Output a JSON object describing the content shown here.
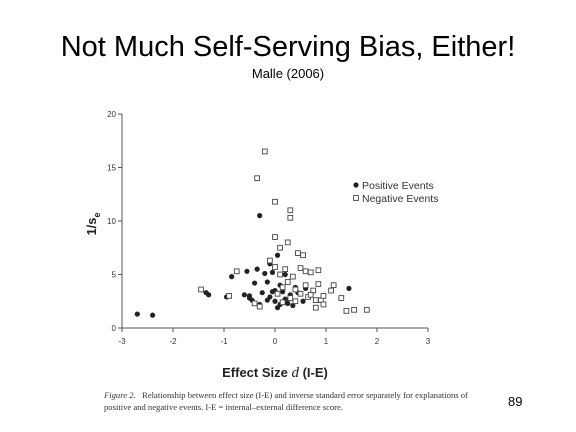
{
  "slide": {
    "title": "Not Much Self-Serving Bias, Either!",
    "subtitle": "Malle (2006)",
    "page_number": "89"
  },
  "figure": {
    "label": "Figure 2.",
    "caption": "Relationship between effect size (I-E) and inverse standard error separately for explanations of positive and negative events. I-E = internal–external difference score."
  },
  "chart_data": {
    "type": "scatter",
    "xlabel_main": "Effect Size ",
    "xlabel_italic": "d",
    "xlabel_suffix": " (I-E)",
    "ylabel_main": "1/s",
    "ylabel_sub": "e",
    "xlim": [
      -3,
      3
    ],
    "ylim": [
      0,
      20
    ],
    "xticks": [
      -3,
      -2,
      -1,
      0,
      1,
      2,
      3
    ],
    "yticks": [
      0,
      5,
      10,
      15,
      20
    ],
    "grid": false,
    "legend_position": "right",
    "colors": {
      "positive": "#222222",
      "negative": "#444444"
    },
    "series": [
      {
        "name": "Positive Events",
        "marker": "filled-circle",
        "points": [
          [
            -2.7,
            1.3
          ],
          [
            -2.4,
            1.2
          ],
          [
            -1.35,
            3.3
          ],
          [
            -1.3,
            3.1
          ],
          [
            -0.85,
            4.8
          ],
          [
            -0.55,
            5.3
          ],
          [
            -0.5,
            3.0
          ],
          [
            -0.5,
            2.8
          ],
          [
            -0.4,
            4.2
          ],
          [
            -0.35,
            5.5
          ],
          [
            -0.3,
            10.5
          ],
          [
            -0.3,
            2.2
          ],
          [
            -0.25,
            3.3
          ],
          [
            -0.2,
            5.1
          ],
          [
            -0.15,
            4.3
          ],
          [
            -0.15,
            2.6
          ],
          [
            -0.1,
            2.9
          ],
          [
            -0.1,
            6.0
          ],
          [
            -0.05,
            5.2
          ],
          [
            0.0,
            3.5
          ],
          [
            0.0,
            2.5
          ],
          [
            0.05,
            6.8
          ],
          [
            0.1,
            2.2
          ],
          [
            0.15,
            3.4
          ],
          [
            0.2,
            5.0
          ],
          [
            0.25,
            2.3
          ],
          [
            0.3,
            3.1
          ],
          [
            0.4,
            3.8
          ],
          [
            0.45,
            3.3
          ],
          [
            0.55,
            2.5
          ],
          [
            0.6,
            3.7
          ],
          [
            -0.45,
            2.6
          ],
          [
            -0.95,
            2.9
          ],
          [
            1.45,
            3.7
          ],
          [
            0.1,
            4.0
          ],
          [
            0.2,
            2.7
          ],
          [
            -0.05,
            3.4
          ],
          [
            0.35,
            2.1
          ],
          [
            -0.6,
            3.1
          ],
          [
            0.05,
            1.9
          ]
        ]
      },
      {
        "name": "Negative Events",
        "marker": "open-square",
        "points": [
          [
            -1.45,
            3.6
          ],
          [
            -0.9,
            3.0
          ],
          [
            -0.75,
            5.3
          ],
          [
            -0.35,
            14.0
          ],
          [
            -0.2,
            16.5
          ],
          [
            -0.1,
            6.3
          ],
          [
            0.0,
            5.7
          ],
          [
            0.0,
            11.8
          ],
          [
            0.0,
            8.5
          ],
          [
            0.1,
            7.5
          ],
          [
            0.1,
            5.0
          ],
          [
            0.15,
            3.8
          ],
          [
            0.2,
            5.5
          ],
          [
            0.25,
            8.0
          ],
          [
            0.3,
            11.0
          ],
          [
            0.3,
            10.3
          ],
          [
            0.3,
            2.8
          ],
          [
            0.35,
            4.8
          ],
          [
            0.4,
            3.6
          ],
          [
            0.4,
            2.5
          ],
          [
            0.45,
            7.0
          ],
          [
            0.5,
            5.6
          ],
          [
            0.5,
            3.2
          ],
          [
            0.55,
            6.8
          ],
          [
            0.6,
            5.3
          ],
          [
            0.6,
            4.0
          ],
          [
            0.65,
            2.9
          ],
          [
            0.7,
            5.2
          ],
          [
            0.75,
            3.5
          ],
          [
            0.8,
            2.6
          ],
          [
            0.8,
            1.9
          ],
          [
            0.85,
            5.4
          ],
          [
            0.85,
            4.1
          ],
          [
            0.9,
            2.6
          ],
          [
            0.95,
            2.2
          ],
          [
            1.1,
            3.5
          ],
          [
            1.15,
            4.0
          ],
          [
            1.3,
            2.8
          ],
          [
            1.4,
            1.6
          ],
          [
            1.55,
            1.7
          ],
          [
            1.8,
            1.7
          ],
          [
            -0.3,
            2.0
          ],
          [
            -0.4,
            2.3
          ],
          [
            0.05,
            3.2
          ],
          [
            0.15,
            2.4
          ],
          [
            0.25,
            4.3
          ],
          [
            0.7,
            3.1
          ],
          [
            0.95,
            3.0
          ]
        ]
      }
    ]
  }
}
